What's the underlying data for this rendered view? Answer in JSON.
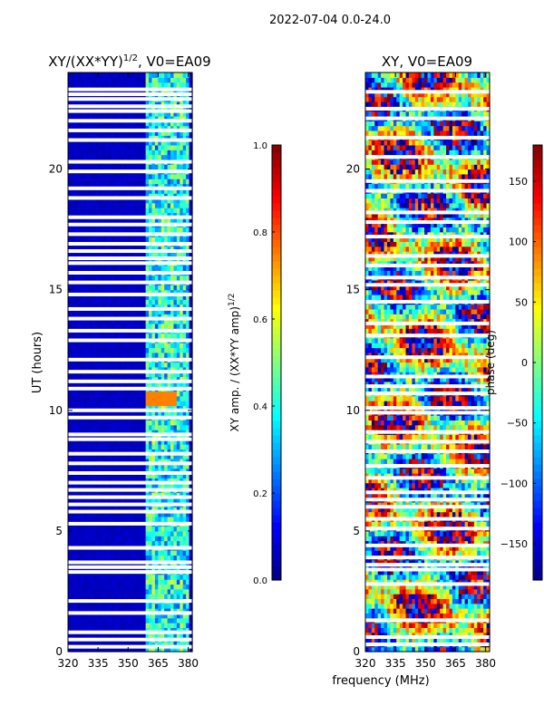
{
  "suptitle": "2022-07-04 0.0-24.0",
  "xlabel": "frequency (MHz)",
  "chart_data": [
    {
      "type": "heatmap",
      "title_main": "XY/(XX*YY)",
      "title_sup": "1/2",
      "title_tail": ", V0=EA09",
      "xlabel": "",
      "ylabel": "UT (hours)",
      "xlim": [
        320,
        382
      ],
      "ylim": [
        0,
        24
      ],
      "xticks": [
        320,
        335,
        350,
        365,
        380
      ],
      "yticks": [
        0,
        5,
        10,
        15,
        20
      ],
      "colorbar": {
        "label_main": "XY amp. / (XX*YY amp)",
        "label_sup": "1/2",
        "range": [
          0.0,
          1.0
        ],
        "ticks": [
          "0.0",
          "0.2",
          "0.4",
          "0.6",
          "0.8",
          "1.0"
        ],
        "tick_values": [
          0.0,
          0.2,
          0.4,
          0.6,
          0.8,
          1.0
        ]
      },
      "active_band_mhz": [
        359,
        381
      ],
      "background_value": 0.05,
      "band_value_range": [
        0.2,
        0.55
      ],
      "hot_spot": {
        "ut": 10.5,
        "mhz_range": [
          359,
          375
        ],
        "value": 0.75
      },
      "blank_rows_ut": [
        0.2,
        0.5,
        0.8,
        1.6,
        2.1,
        3.3,
        3.5,
        3.7,
        4.3,
        5.3,
        5.8,
        6.1,
        6.4,
        6.7,
        7.0,
        7.4,
        7.8,
        8.2,
        8.8,
        9.0,
        9.7,
        10.0,
        10.9,
        11.2,
        11.6,
        12.1,
        12.9,
        13.3,
        13.8,
        14.2,
        14.8,
        15.3,
        15.7,
        16.1,
        16.3,
        16.6,
        16.9,
        17.3,
        17.7,
        18.0,
        18.8,
        19.2,
        19.9,
        20.3,
        21.2,
        21.6,
        22.0,
        22.4,
        22.6,
        22.9,
        23.1,
        23.3
      ]
    },
    {
      "type": "heatmap",
      "title_main": "XY, V0=EA09",
      "xlabel": "frequency (MHz)",
      "ylabel": "",
      "xlim": [
        320,
        382
      ],
      "ylim": [
        0,
        24
      ],
      "xticks": [
        320,
        335,
        350,
        365,
        380
      ],
      "yticks": [
        0,
        5,
        10,
        15,
        20
      ],
      "colorbar": {
        "label_main": "phase (deg)",
        "range": [
          -180,
          180
        ],
        "ticks": [
          "−150",
          "−100",
          "−50",
          "0",
          "50",
          "100",
          "150"
        ],
        "tick_values": [
          -150,
          -100,
          -50,
          0,
          50,
          100,
          150
        ]
      },
      "blank_rows_ut": [
        0.3,
        0.6,
        1.3,
        2.8,
        3.4,
        3.6,
        3.9,
        4.4,
        5.1,
        5.5,
        6.0,
        6.3,
        6.6,
        7.2,
        7.7,
        8.3,
        8.7,
        9.1,
        9.9,
        10.1,
        10.7,
        11.0,
        11.4,
        12.2,
        13.1,
        13.6,
        14.5,
        15.2,
        15.5,
        16.0,
        16.4,
        17.2,
        17.8,
        18.2,
        19.1,
        19.5,
        20.5,
        21.3,
        22.1,
        22.5,
        23.2
      ]
    }
  ]
}
